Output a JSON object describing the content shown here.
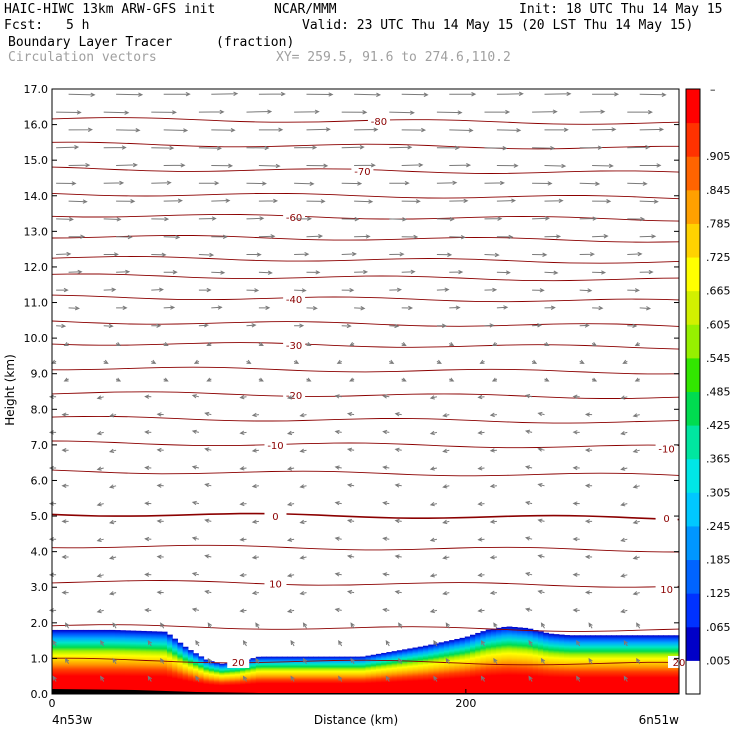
{
  "header": {
    "model": "HAIC-HIWC 13km ARW-GFS init",
    "org": "NCAR/MMM",
    "init": "Init: 18 UTC Thu 14 May 15",
    "fcst_label": "Fcst:",
    "fcst_value": "5 h",
    "valid": "Valid: 23 UTC Thu 14 May 15 (20 LST Thu 14 May 15)",
    "field": "Boundary Layer Tracer",
    "field_units": "(fraction)",
    "vectors": "Circulation vectors",
    "xy": "XY= 259.5, 91.6 to 274.6,110.2"
  },
  "colors": {
    "isotherm": "#8b0000",
    "vector": "#7a7a7a",
    "frame": "#000000"
  },
  "chart_data": {
    "type": "cross-section",
    "ylabel": "Height (km)",
    "xlabel": "Distance (km)",
    "ylim": [
      0,
      17
    ],
    "xlim": [
      0,
      303
    ],
    "y_ticks": [
      "0.0",
      "1.0",
      "2.0",
      "3.0",
      "4.0",
      "5.0",
      "6.0",
      "7.0",
      "8.0",
      "9.0",
      "10.0",
      "11.0",
      "12.0",
      "13.0",
      "14.0",
      "15.0",
      "16.0",
      "17.0"
    ],
    "x_ticks": [
      {
        "value": 0,
        "label": "0"
      },
      {
        "value": 200,
        "label": "200"
      }
    ],
    "x_endpoints": {
      "left": "4n53w",
      "right": "6n51w"
    },
    "isotherm_labels": [
      {
        "value": "-80",
        "x": 158,
        "y": 16.1
      },
      {
        "value": "-70",
        "x": 150,
        "y": 14.7
      },
      {
        "value": "-60",
        "x": 117,
        "y": 13.4
      },
      {
        "value": "-40",
        "x": 117,
        "y": 11.1
      },
      {
        "value": "-30",
        "x": 117,
        "y": 9.8
      },
      {
        "value": "-20",
        "x": 117,
        "y": 8.4
      },
      {
        "value": "-10",
        "x": 108,
        "y": 7.0
      },
      {
        "value": "-10",
        "x": 297,
        "y": 6.9
      },
      {
        "value": "0",
        "x": 108,
        "y": 5.0
      },
      {
        "value": "0",
        "x": 297,
        "y": 4.95
      },
      {
        "value": "10",
        "x": 108,
        "y": 3.1
      },
      {
        "value": "10",
        "x": 297,
        "y": 2.95
      },
      {
        "value": "20",
        "x": 90,
        "y": 0.9
      },
      {
        "value": "20",
        "x": 303,
        "y": 0.9
      }
    ],
    "isotherm_heights": [
      16.1,
      15.4,
      14.7,
      14.0,
      13.4,
      12.8,
      12.2,
      11.7,
      11.1,
      10.4,
      9.8,
      9.1,
      8.4,
      7.7,
      7.0,
      6.2,
      5.0,
      4.1,
      3.1,
      1.85,
      0.9
    ],
    "tracer_top": {
      "x": [
        0,
        30,
        55,
        65,
        75,
        82,
        90,
        100,
        120,
        150,
        165,
        180,
        200,
        210,
        220,
        230,
        240,
        250,
        270,
        303
      ],
      "y": [
        1.8,
        1.8,
        1.75,
        1.3,
        0.95,
        0.85,
        0.9,
        1.05,
        1.05,
        1.05,
        1.2,
        1.35,
        1.6,
        1.8,
        1.9,
        1.85,
        1.7,
        1.65,
        1.65,
        1.65
      ]
    },
    "colorbar": {
      "labels": [
        ".005",
        ".065",
        ".125",
        ".185",
        ".245",
        ".305",
        ".365",
        ".425",
        ".485",
        ".545",
        ".605",
        ".665",
        ".725",
        ".785",
        ".845",
        ".905"
      ],
      "colors": [
        "#ffffff",
        "#0000c8",
        "#0032ff",
        "#0064ff",
        "#0096ff",
        "#00c8ff",
        "#00e6e6",
        "#00e6a0",
        "#00dc50",
        "#32e600",
        "#96f000",
        "#d2f000",
        "#ffff00",
        "#ffd200",
        "#ffa000",
        "#ff6400",
        "#ff3200",
        "#ff0000"
      ]
    }
  }
}
